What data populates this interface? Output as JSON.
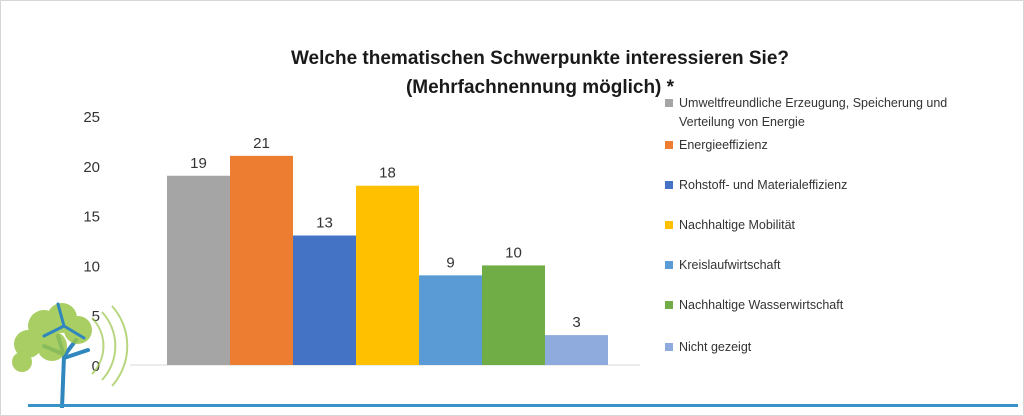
{
  "chart_data": {
    "type": "bar",
    "title": "Welche thematischen Schwerpunkte interessieren Sie?",
    "subtitle": "(Mehrfachnennung möglich) *",
    "xlabel": "",
    "ylabel": "",
    "ylim": [
      0,
      25
    ],
    "yticks": [
      0,
      5,
      10,
      15,
      20,
      25
    ],
    "grid": false,
    "legend_position": "right",
    "categories": [
      "Umweltfreundliche Erzeugung, Speicherung und Verteilung von Energie",
      "Energieeffizienz",
      "Rohstoff- und Materialeffizienz",
      "Nachhaltige Mobilität",
      "Kreislaufwirtschaft",
      "Nachhaltige Wasserwirtschaft",
      "Nicht gezeigt"
    ],
    "values": [
      19,
      21,
      13,
      18,
      9,
      10,
      3
    ],
    "colors": [
      "#a5a5a5",
      "#ed7d31",
      "#4472c4",
      "#ffc000",
      "#5b9bd5",
      "#70ad47",
      "#8faadc"
    ]
  },
  "decor": {
    "accent_line_color": "#3a93c8",
    "logo": "tree-logo-icon"
  }
}
